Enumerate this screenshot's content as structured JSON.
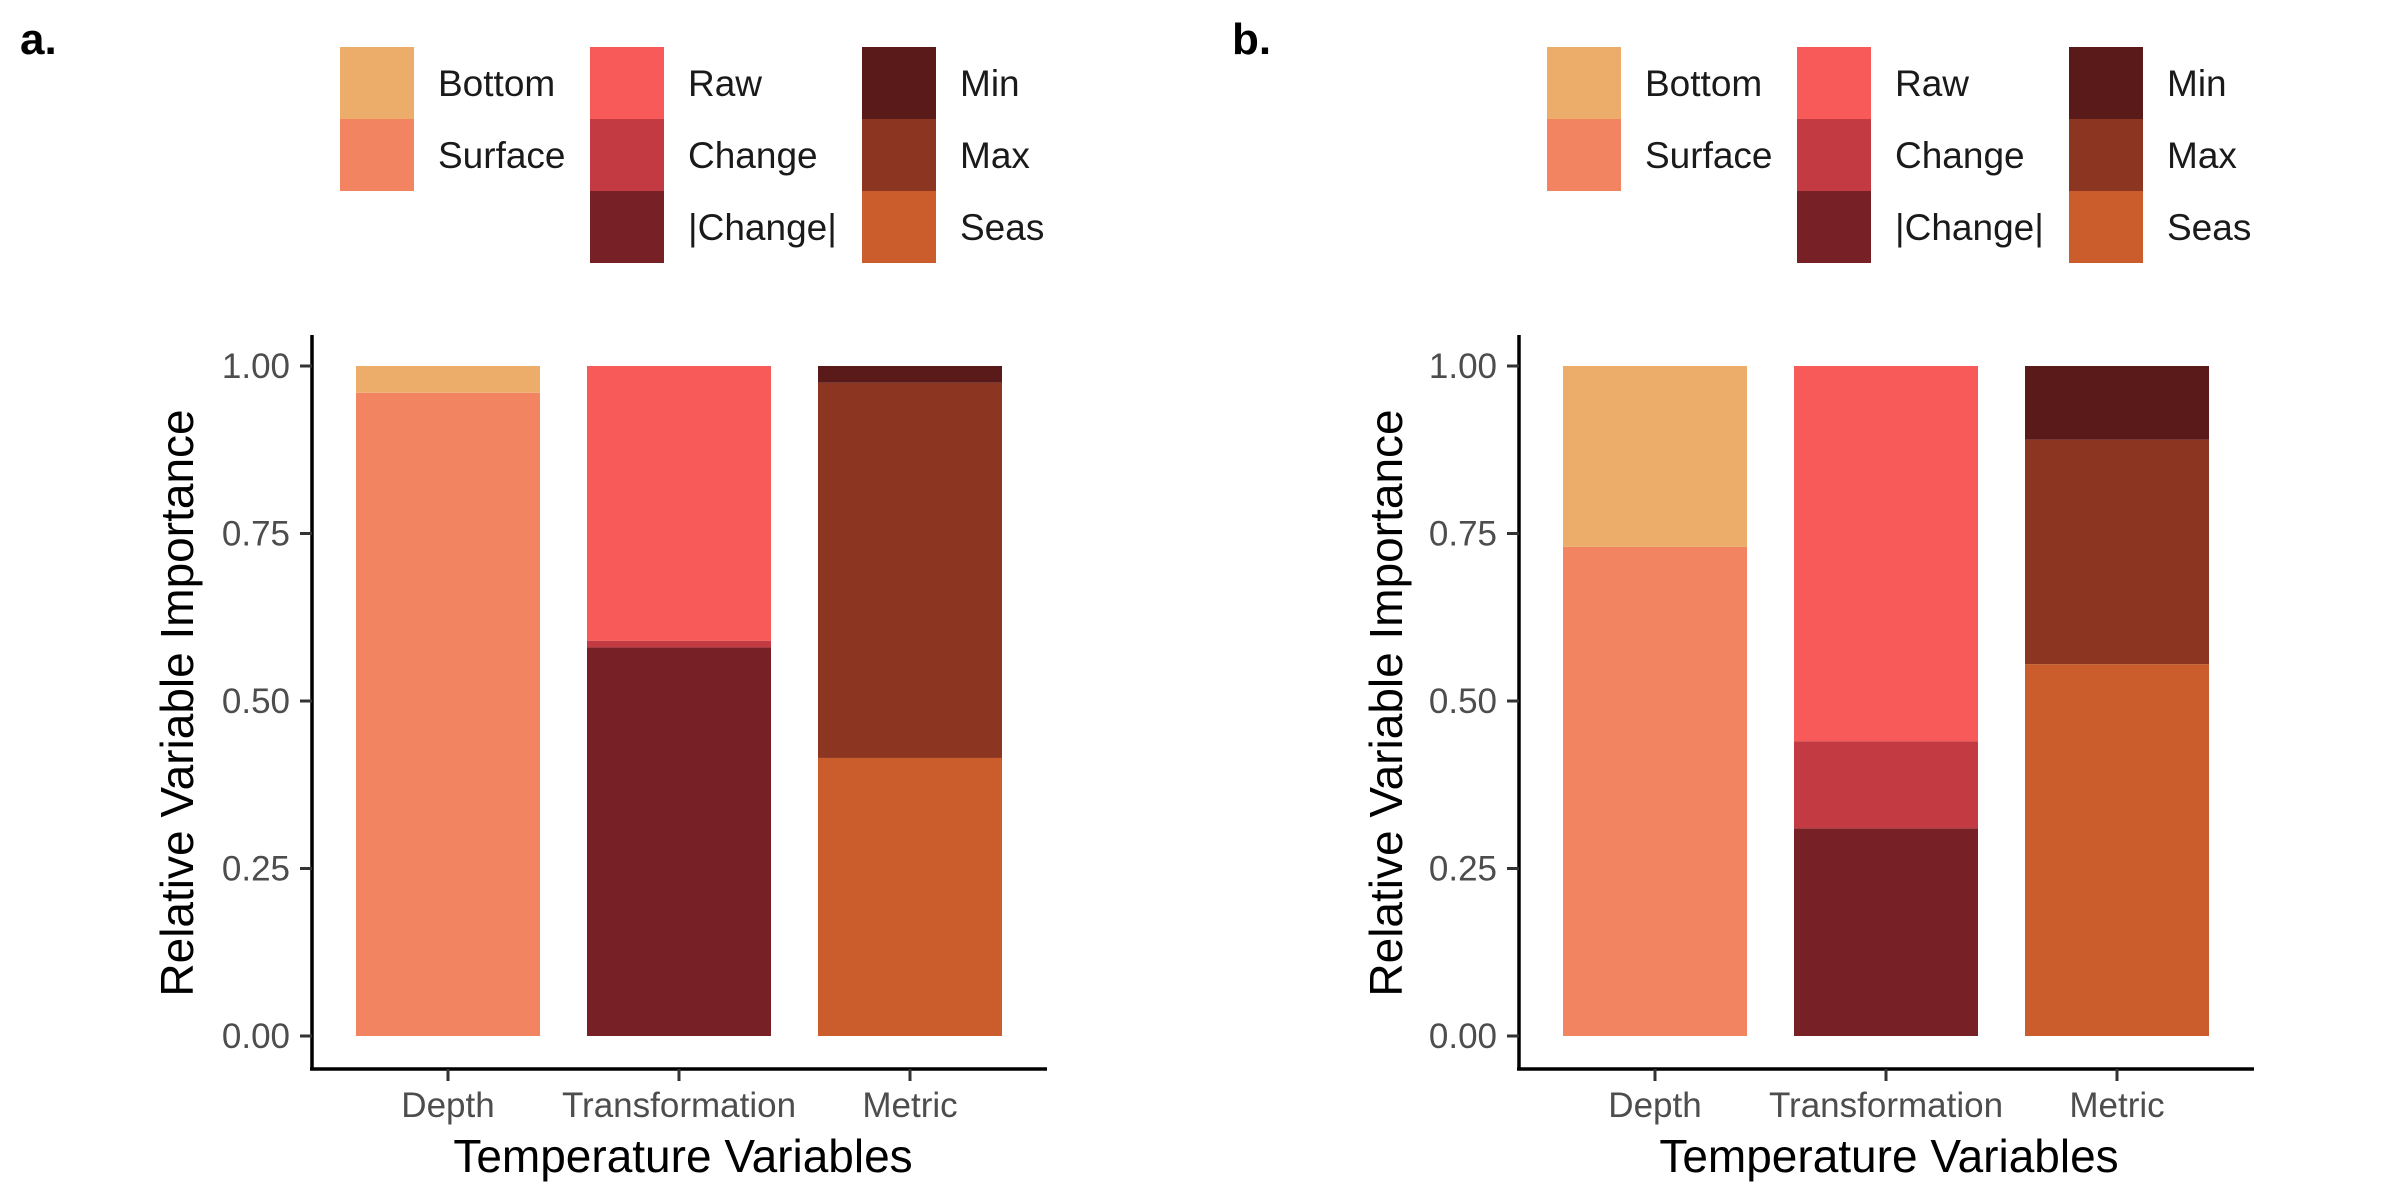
{
  "legend": [
    {
      "label": "Bottom",
      "color": "#ECAD6A"
    },
    {
      "label": "Surface",
      "color": "#F28462"
    },
    {
      "label": "Raw",
      "color": "#F75A59"
    },
    {
      "label": "Change",
      "color": "#C33A42"
    },
    {
      "label": "|Change|",
      "color": "#772025"
    },
    {
      "label": "Min",
      "color": "#5A1A1A"
    },
    {
      "label": "Max",
      "color": "#8C3520"
    },
    {
      "label": "Seas",
      "color": "#CB5D2C"
    }
  ],
  "chart_data": [
    {
      "panel_label": "a.",
      "type": "bar",
      "stacked": true,
      "xlabel": "Temperature Variables",
      "ylabel": "Relative Variable Importance",
      "ylim": [
        0,
        1
      ],
      "yticks": [
        "0.00",
        "0.25",
        "0.50",
        "0.75",
        "1.00"
      ],
      "categories": [
        "Depth",
        "Transformation",
        "Metric"
      ],
      "bars": [
        {
          "category": "Depth",
          "segments": [
            {
              "name": "Surface",
              "value": 0.96
            },
            {
              "name": "Bottom",
              "value": 0.04
            }
          ]
        },
        {
          "category": "Transformation",
          "segments": [
            {
              "name": "|Change|",
              "value": 0.58
            },
            {
              "name": "Change",
              "value": 0.01
            },
            {
              "name": "Raw",
              "value": 0.41
            }
          ]
        },
        {
          "category": "Metric",
          "segments": [
            {
              "name": "Seas",
              "value": 0.415
            },
            {
              "name": "Max",
              "value": 0.56
            },
            {
              "name": "Min",
              "value": 0.025
            }
          ]
        }
      ]
    },
    {
      "panel_label": "b.",
      "type": "bar",
      "stacked": true,
      "xlabel": "Temperature Variables",
      "ylabel": "Relative Variable Importance",
      "ylim": [
        0,
        1
      ],
      "yticks": [
        "0.00",
        "0.25",
        "0.50",
        "0.75",
        "1.00"
      ],
      "categories": [
        "Depth",
        "Transformation",
        "Metric"
      ],
      "bars": [
        {
          "category": "Depth",
          "segments": [
            {
              "name": "Surface",
              "value": 0.73
            },
            {
              "name": "Bottom",
              "value": 0.27
            }
          ]
        },
        {
          "category": "Transformation",
          "segments": [
            {
              "name": "|Change|",
              "value": 0.31
            },
            {
              "name": "Change",
              "value": 0.13
            },
            {
              "name": "Raw",
              "value": 0.56
            }
          ]
        },
        {
          "category": "Metric",
          "segments": [
            {
              "name": "Seas",
              "value": 0.555
            },
            {
              "name": "Max",
              "value": 0.335
            },
            {
              "name": "Min",
              "value": 0.11
            }
          ]
        }
      ]
    }
  ]
}
